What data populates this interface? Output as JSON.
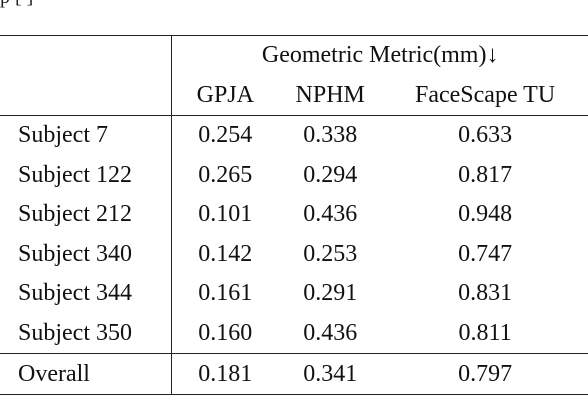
{
  "caption_fragment": "p                                                                                         [  ]",
  "table": {
    "group_header": "Geometric Metric(mm)↓",
    "columns": [
      "GPJA",
      "NPHM",
      "FaceScape TU"
    ],
    "rows": [
      {
        "label": "Subject 7",
        "gpja": "0.254",
        "nphm": "0.338",
        "facescape": "0.633"
      },
      {
        "label": "Subject 122",
        "gpja": "0.265",
        "nphm": "0.294",
        "facescape": "0.817"
      },
      {
        "label": "Subject 212",
        "gpja": "0.101",
        "nphm": "0.436",
        "facescape": "0.948"
      },
      {
        "label": "Subject 340",
        "gpja": "0.142",
        "nphm": "0.253",
        "facescape": "0.747"
      },
      {
        "label": "Subject 344",
        "gpja": "0.161",
        "nphm": "0.291",
        "facescape": "0.831"
      },
      {
        "label": "Subject 350",
        "gpja": "0.160",
        "nphm": "0.436",
        "facescape": "0.811"
      }
    ],
    "overall": {
      "label": "Overall",
      "gpja": "0.181",
      "nphm": "0.341",
      "facescape": "0.797"
    }
  }
}
